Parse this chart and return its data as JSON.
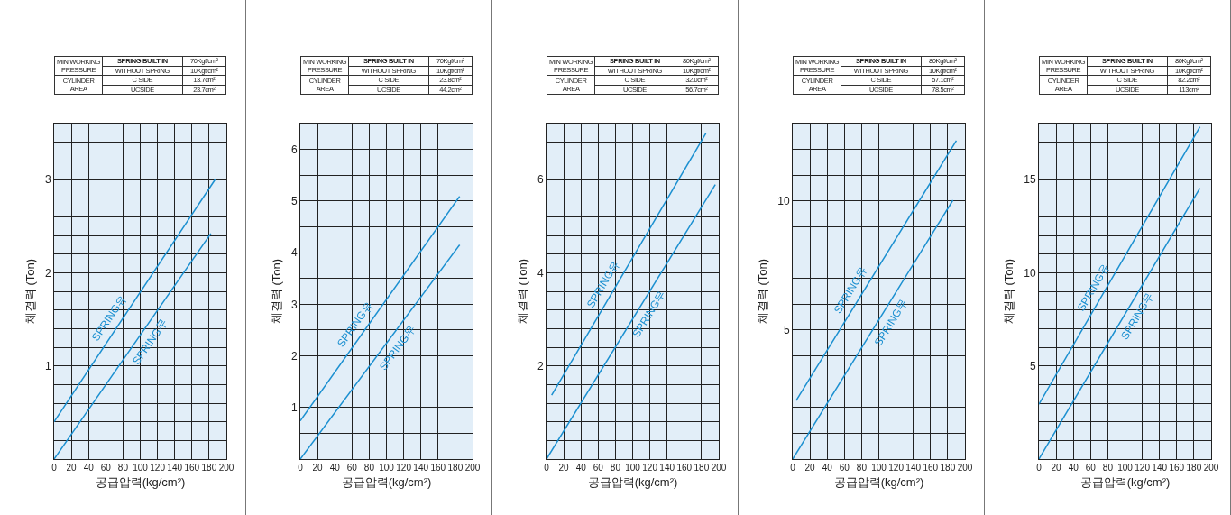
{
  "chart_data": [
    {
      "type": "line",
      "xlabel": "공급압력(kg/cm²)",
      "ylabel": "체결력 (Ton)",
      "grid": true,
      "annotations": [
        "MIN WORKING PRESSURE",
        "SPRING BUILT IN",
        "70Kgf/cm²",
        "WITHOUT SPRING",
        "10Kgf/cm²",
        "CYLINDER AREA",
        "C SIDE",
        "13.7cm²",
        "UCSIDE",
        "23.7cm²"
      ],
      "xlim": [
        0,
        200
      ],
      "xticks": [
        0,
        20,
        40,
        60,
        80,
        100,
        120,
        140,
        160,
        180,
        200
      ],
      "ylim": [
        0,
        3.6
      ],
      "yticks": [
        {
          "value": 0.2,
          "label": null
        },
        {
          "value": 0.4,
          "label": null
        },
        {
          "value": 0.6,
          "label": null
        },
        {
          "value": 0.8,
          "label": null
        },
        1,
        {
          "value": 1.2,
          "label": null
        },
        {
          "value": 1.4,
          "label": null
        },
        {
          "value": 1.6,
          "label": null
        },
        {
          "value": 1.8,
          "label": null
        },
        2,
        {
          "value": 2.2,
          "label": null
        },
        {
          "value": 2.4,
          "label": null
        },
        {
          "value": 2.6,
          "label": null
        },
        {
          "value": 2.8,
          "label": null
        },
        3,
        {
          "value": 3.2,
          "label": null
        },
        {
          "value": 3.4,
          "label": null
        }
      ],
      "series": [
        {
          "name": "SPRING유",
          "color": "#1a8fd0",
          "x": [
            0,
            187
          ],
          "values": [
            0.4,
            3.0
          ]
        },
        {
          "name": "SPRING무",
          "color": "#1a8fd0",
          "x": [
            0,
            182
          ],
          "values": [
            0,
            2.42
          ]
        }
      ]
    },
    {
      "type": "line",
      "xlabel": "공급압력(kg/cm²)",
      "ylabel": "체결력 (Ton)",
      "grid": true,
      "annotations": [
        "MIN WORKING PRESSURE",
        "SPRING BUILT IN",
        "70Kgf/cm²",
        "WITHOUT SPRING",
        "10Kgf/cm²",
        "CYLINDER AREA",
        "C SIDE",
        "23.8cm²",
        "UCSIDE",
        "44.2cm²"
      ],
      "xlim": [
        0,
        200
      ],
      "xticks": [
        0,
        20,
        40,
        60,
        80,
        100,
        120,
        140,
        160,
        180,
        200
      ],
      "ylim": [
        0,
        6.5
      ],
      "yticks": [
        {
          "value": 0.5,
          "label": null
        },
        1,
        {
          "value": 1.5,
          "label": null
        },
        2,
        {
          "value": 2.5,
          "label": null
        },
        3,
        {
          "value": 3.5,
          "label": null
        },
        4,
        {
          "value": 4.5,
          "label": null
        },
        5,
        {
          "value": 5.5,
          "label": null
        },
        6
      ],
      "series": [
        {
          "name": "SPRING유",
          "color": "#1a8fd0",
          "x": [
            0,
            185
          ],
          "values": [
            0.74,
            5.09
          ]
        },
        {
          "name": "SPRING무",
          "color": "#1a8fd0",
          "x": [
            0,
            185
          ],
          "values": [
            0,
            4.15
          ]
        }
      ]
    },
    {
      "type": "line",
      "xlabel": "공급압력(kg/cm²)",
      "ylabel": "체결력 (Ton)",
      "grid": true,
      "annotations": [
        "MIN WORKING PRESSURE",
        "SPRING BUILT IN",
        "80Kgf/cm²",
        "WITHOUT SPRING",
        "10Kgf/cm²",
        "CYLINDER AREA",
        "C SIDE",
        "32.0cm²",
        "UCSIDE",
        "56.7cm²"
      ],
      "xlim": [
        0,
        200
      ],
      "xticks": [
        0,
        20,
        40,
        60,
        80,
        100,
        120,
        140,
        160,
        180,
        200
      ],
      "ylim": [
        0,
        7.2
      ],
      "yticks": [
        {
          "value": 0.4,
          "label": null
        },
        {
          "value": 0.8,
          "label": null
        },
        {
          "value": 1.2,
          "label": null
        },
        {
          "value": 1.6,
          "label": null
        },
        2,
        {
          "value": 2.4,
          "label": null
        },
        {
          "value": 2.8,
          "label": null
        },
        {
          "value": 3.2,
          "label": null
        },
        {
          "value": 3.6,
          "label": null
        },
        4,
        {
          "value": 4.4,
          "label": null
        },
        {
          "value": 4.8,
          "label": null
        },
        {
          "value": 5.2,
          "label": null
        },
        {
          "value": 5.6,
          "label": null
        },
        6,
        {
          "value": 6.4,
          "label": null
        },
        {
          "value": 6.8,
          "label": null
        }
      ],
      "series": [
        {
          "name": "SPRING유",
          "color": "#1a8fd0",
          "x": [
            6,
            185
          ],
          "values": [
            1.37,
            6.99
          ]
        },
        {
          "name": "SPRING무",
          "color": "#1a8fd0",
          "x": [
            0,
            196
          ],
          "values": [
            0,
            5.89
          ]
        }
      ]
    },
    {
      "type": "line",
      "xlabel": "공급압력(kg/cm²)",
      "ylabel": "체결력 (Ton)",
      "grid": true,
      "annotations": [
        "MIN WORKING PRESSURE",
        "SPRING BUILT IN",
        "80Kgf/cm²",
        "WITHOUT SPRING",
        "10Kgf/cm²",
        "CYLINDER AREA",
        "C SIDE",
        "57.1cm²",
        "UCSIDE",
        "78.5cm²"
      ],
      "xlim": [
        0,
        200
      ],
      "xticks": [
        0,
        20,
        40,
        60,
        80,
        100,
        120,
        140,
        160,
        180,
        200
      ],
      "ylim": [
        0,
        13
      ],
      "yticks": [
        {
          "value": 1,
          "label": null
        },
        {
          "value": 2,
          "label": null
        },
        {
          "value": 3,
          "label": null
        },
        {
          "value": 4,
          "label": null
        },
        5,
        {
          "value": 6,
          "label": null
        },
        {
          "value": 7,
          "label": null
        },
        {
          "value": 8,
          "label": null
        },
        {
          "value": 9,
          "label": null
        },
        10,
        {
          "value": 11,
          "label": null
        },
        {
          "value": 12,
          "label": null
        }
      ],
      "series": [
        {
          "name": "SPRING유",
          "color": "#1a8fd0",
          "x": [
            4,
            190
          ],
          "values": [
            2.27,
            12.34
          ]
        },
        {
          "name": "SPRING무",
          "color": "#1a8fd0",
          "x": [
            0,
            186
          ],
          "values": [
            0,
            10.03
          ]
        }
      ]
    },
    {
      "type": "line",
      "xlabel": "공급압력(kg/cm²)",
      "ylabel": "체결력 (Ton)",
      "grid": true,
      "annotations": [
        "MIN WORKING PRESSURE",
        "SPRING BUILT IN",
        "80Kgf/cm²",
        "WITHOUT SPRING",
        "10Kgf/cm²",
        "CYLINDER AREA",
        "C SIDE",
        "82.2cm²",
        "UCSIDE",
        "113cm²"
      ],
      "xlim": [
        0,
        200
      ],
      "xticks": [
        0,
        20,
        40,
        60,
        80,
        100,
        120,
        140,
        160,
        180,
        200
      ],
      "ylim": [
        0,
        18
      ],
      "yticks": [
        {
          "value": 1,
          "label": null
        },
        {
          "value": 2,
          "label": null
        },
        {
          "value": 3,
          "label": null
        },
        {
          "value": 4,
          "label": null
        },
        5,
        {
          "value": 6,
          "label": null
        },
        {
          "value": 7,
          "label": null
        },
        {
          "value": 8,
          "label": null
        },
        {
          "value": 9,
          "label": null
        },
        10,
        {
          "value": 11,
          "label": null
        },
        {
          "value": 12,
          "label": null
        },
        {
          "value": 13,
          "label": null
        },
        {
          "value": 14,
          "label": null
        },
        15,
        {
          "value": 16,
          "label": null
        },
        {
          "value": 17,
          "label": null
        }
      ],
      "series": [
        {
          "name": "SPRING유",
          "color": "#1a8fd0",
          "x": [
            0,
            187
          ],
          "values": [
            2.94,
            17.83
          ]
        },
        {
          "name": "SPRING무",
          "color": "#1a8fd0",
          "x": [
            0,
            187
          ],
          "values": [
            0,
            14.54
          ]
        }
      ]
    }
  ]
}
